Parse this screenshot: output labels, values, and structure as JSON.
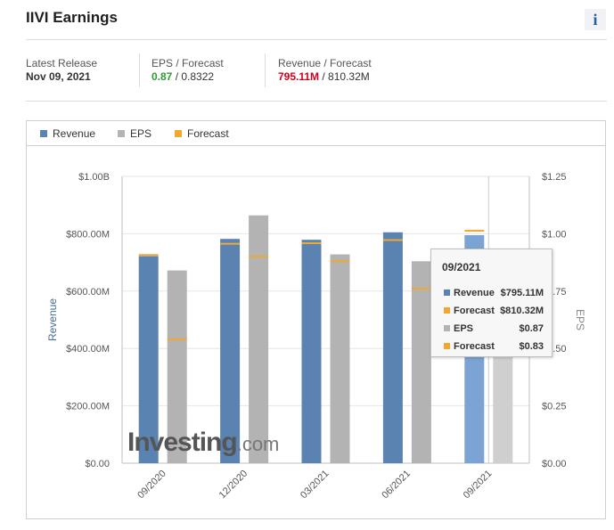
{
  "header": {
    "title": "IIVI Earnings",
    "info_icon": "i"
  },
  "stats": {
    "latest_release_label": "Latest Release",
    "latest_release_value": "Nov 09, 2021",
    "eps_label": "EPS / Forecast",
    "eps_actual": "0.87",
    "eps_forecast": " / 0.8322",
    "revenue_label": "Revenue / Forecast",
    "revenue_actual": "795.11M",
    "revenue_forecast": " / 810.32M"
  },
  "legend": {
    "revenue": "Revenue",
    "eps": "EPS",
    "forecast": "Forecast"
  },
  "colors": {
    "revenue": "#5b83b1",
    "revenue_highlight": "#7ba3d3",
    "eps": "#b3b3b3",
    "eps_highlight": "#cfcfcf",
    "forecast": "#f0a830"
  },
  "chart_data": {
    "type": "bar",
    "categories": [
      "09/2020",
      "12/2020",
      "03/2021",
      "06/2021",
      "09/2021"
    ],
    "series": [
      {
        "name": "Revenue",
        "axis": "left",
        "values": [
          722000000,
          782000000,
          779000000,
          805000000,
          795110000
        ]
      },
      {
        "name": "EPS",
        "axis": "right",
        "values": [
          0.84,
          1.08,
          0.91,
          0.88,
          0.87
        ]
      }
    ],
    "forecast": {
      "Revenue": [
        726000000,
        765000000,
        767000000,
        778000000,
        810320000
      ],
      "EPS": [
        0.54,
        0.9,
        0.88,
        0.76,
        0.8322
      ]
    },
    "ylabel": "Revenue",
    "y2label": "EPS",
    "ylim": [
      0,
      1000000000
    ],
    "y2lim": [
      0,
      1.25
    ],
    "y_ticks": [
      "$0.00",
      "$200.00M",
      "$400.00M",
      "$600.00M",
      "$800.00M",
      "$1.00B"
    ],
    "y2_ticks": [
      "$0.00",
      "$0.25",
      "$0.50",
      "$0.75",
      "$1.00",
      "$1.25"
    ],
    "highlighted_category": "09/2021",
    "grid": true,
    "legend_position": "top-left"
  },
  "tooltip": {
    "title": "09/2021",
    "rows": [
      {
        "label": "Revenue",
        "value": "$795.11M",
        "color": "#5b83b1"
      },
      {
        "label": "Forecast",
        "value": "$810.32M",
        "color": "#f0a830"
      },
      {
        "label": "EPS",
        "value": "$0.87",
        "color": "#b3b3b3"
      },
      {
        "label": "Forecast",
        "value": "$0.83",
        "color": "#f0a830"
      }
    ]
  },
  "watermark": {
    "brand": "Investing",
    "suffix": ".com"
  }
}
